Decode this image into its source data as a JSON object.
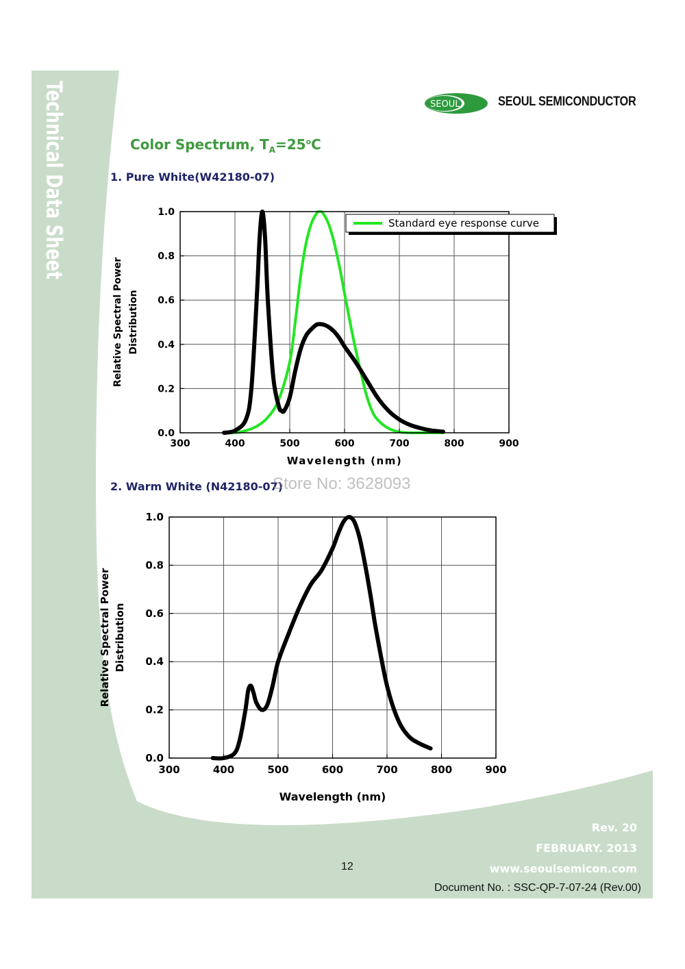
{
  "sidebar": {
    "title": "Technical Data Sheet"
  },
  "brand": {
    "logo_text": "SEOUL",
    "name": "SEOUL SEMICONDUCTOR"
  },
  "page": {
    "title_main": "Color Spectrum, T",
    "title_sub": "A",
    "title_rest": "=25",
    "title_sup": "o",
    "title_end": "C"
  },
  "sections": {
    "pure_white": "1. Pure White(W42180-07)",
    "warm_white": "2. Warm White (N42180-07)"
  },
  "watermark": "Store No: 3628093",
  "colors": {
    "side_green": "#c9dcc9",
    "title_green": "#3f9b3f",
    "section_navy": "#1f2466",
    "eye_curve": "#22e622"
  },
  "chart_data": [
    {
      "type": "line",
      "title": "1. Pure White(W42180-07)",
      "xlabel": "Wavelength (nm)",
      "ylabel_line1": "Relative Spectral Power",
      "ylabel_line2": "Distribution",
      "xlim": [
        300,
        900
      ],
      "ylim": [
        0,
        1
      ],
      "xticks": [
        "300",
        "400",
        "500",
        "600",
        "700",
        "800",
        "900"
      ],
      "yticks": [
        "0.0",
        "0.2",
        "0.4",
        "0.6",
        "0.8",
        "1.0"
      ],
      "legend": {
        "position": "top-right",
        "entries": [
          "Standard eye response curve"
        ]
      },
      "series": [
        {
          "name": "Pure White spectrum",
          "color": "#000000",
          "x": [
            380,
            400,
            420,
            430,
            440,
            445,
            450,
            455,
            460,
            470,
            480,
            485,
            490,
            500,
            510,
            520,
            530,
            540,
            550,
            560,
            570,
            580,
            590,
            600,
            620,
            640,
            660,
            680,
            700,
            720,
            740,
            760,
            780
          ],
          "y": [
            0.0,
            0.01,
            0.06,
            0.2,
            0.62,
            0.88,
            1.0,
            0.88,
            0.6,
            0.25,
            0.12,
            0.1,
            0.1,
            0.16,
            0.28,
            0.38,
            0.44,
            0.47,
            0.49,
            0.49,
            0.48,
            0.46,
            0.43,
            0.39,
            0.32,
            0.24,
            0.16,
            0.1,
            0.06,
            0.035,
            0.02,
            0.01,
            0.005
          ]
        },
        {
          "name": "Standard eye response curve",
          "color": "#22e622",
          "x": [
            380,
            400,
            420,
            440,
            460,
            480,
            500,
            510,
            520,
            530,
            540,
            550,
            555,
            560,
            570,
            580,
            590,
            600,
            610,
            620,
            630,
            640,
            650,
            660,
            680,
            700,
            720,
            740,
            780
          ],
          "y": [
            0.0,
            0.0,
            0.01,
            0.03,
            0.07,
            0.15,
            0.32,
            0.5,
            0.71,
            0.86,
            0.95,
            0.995,
            1.0,
            0.995,
            0.95,
            0.87,
            0.76,
            0.63,
            0.5,
            0.38,
            0.27,
            0.17,
            0.1,
            0.06,
            0.02,
            0.004,
            0.0,
            0.0,
            0.0
          ]
        }
      ]
    },
    {
      "type": "line",
      "title": "2. Warm White (N42180-07)",
      "xlabel": "Wavelength (nm)",
      "ylabel_line1": "Relative Spectral Power",
      "ylabel_line2": "Distribution",
      "xlim": [
        300,
        900
      ],
      "ylim": [
        0,
        1
      ],
      "xticks": [
        "300",
        "400",
        "500",
        "600",
        "700",
        "800",
        "900"
      ],
      "yticks": [
        "0.0",
        "0.2",
        "0.4",
        "0.6",
        "0.8",
        "1.0"
      ],
      "series": [
        {
          "name": "Warm White spectrum",
          "color": "#000000",
          "x": [
            380,
            400,
            420,
            430,
            440,
            445,
            450,
            455,
            460,
            470,
            480,
            490,
            500,
            520,
            540,
            560,
            580,
            600,
            610,
            620,
            630,
            640,
            650,
            660,
            670,
            680,
            700,
            720,
            740,
            760,
            780
          ],
          "y": [
            0.0,
            0.0,
            0.02,
            0.08,
            0.2,
            0.28,
            0.3,
            0.27,
            0.23,
            0.2,
            0.22,
            0.3,
            0.4,
            0.52,
            0.63,
            0.72,
            0.78,
            0.87,
            0.93,
            0.98,
            1.0,
            0.98,
            0.91,
            0.8,
            0.67,
            0.53,
            0.3,
            0.16,
            0.09,
            0.06,
            0.04
          ]
        }
      ]
    }
  ],
  "footer": {
    "rev": "Rev. 20",
    "date": "FEBRUARY. 2013",
    "website": "www.seoulsemicon.com",
    "page_number": "12",
    "doc_no": "Document No. : SSC-QP-7-07-24 (Rev.00)"
  }
}
